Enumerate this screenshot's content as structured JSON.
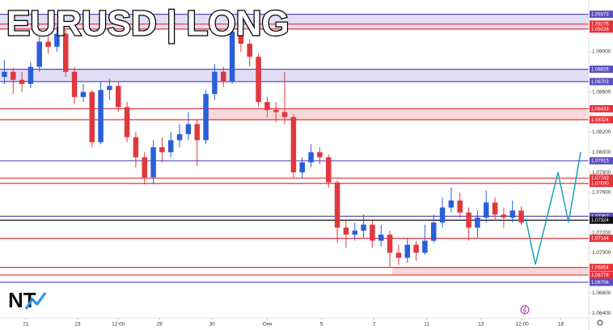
{
  "chart_data": {
    "type": "candlestick",
    "title": "EURUSD | LONG",
    "logo": "NT",
    "xlim": [
      0,
      67.2
    ],
    "ylim": [
      1.06336,
      1.09515
    ],
    "xticks": [
      {
        "value": 2.95,
        "label": "21"
      },
      {
        "value": 8.86,
        "label": "23"
      },
      {
        "value": 13.5,
        "label": "12:00"
      },
      {
        "value": 18.2,
        "label": "28"
      },
      {
        "value": 24.2,
        "label": "30"
      },
      {
        "value": 30.5,
        "label": "Сен"
      },
      {
        "value": 36.7,
        "label": "5"
      },
      {
        "value": 42.7,
        "label": "7"
      },
      {
        "value": 48.7,
        "label": "11"
      },
      {
        "value": 54.9,
        "label": "13"
      },
      {
        "value": 59.6,
        "label": "12:00"
      },
      {
        "value": 64.0,
        "label": "18"
      }
    ],
    "yticks": [
      {
        "value": 1.064,
        "label": "1.06400"
      },
      {
        "value": 1.066,
        "label": "1.06600"
      },
      {
        "value": 1.07,
        "label": "1.07000"
      },
      {
        "value": 1.072,
        "label": "1.07200"
      },
      {
        "value": 1.076,
        "label": "1.07600"
      },
      {
        "value": 1.078,
        "label": "1.07800"
      },
      {
        "value": 1.08,
        "label": "1.08000"
      },
      {
        "value": 1.082,
        "label": "1.08200"
      },
      {
        "value": 1.086,
        "label": "1.08600"
      },
      {
        "value": 1.09,
        "label": "1.09000"
      }
    ],
    "up_color": "#2b5fd9",
    "down_color": "#e0383e",
    "open": [
      1.0875,
      1.088,
      1.0872,
      1.0868,
      1.0885,
      1.091,
      1.0905,
      1.0918,
      1.088,
      1.0855,
      1.086,
      1.081,
      1.0862,
      1.0866,
      1.0845,
      1.0815,
      1.0795,
      1.0775,
      1.0805,
      1.08,
      1.0812,
      1.0818,
      1.0828,
      1.0812,
      1.0858,
      1.088,
      1.087,
      1.092,
      1.0908,
      1.0895,
      1.085,
      1.0842,
      1.084,
      1.0835,
      1.078,
      1.079,
      1.08,
      1.0795,
      1.077,
      1.0725,
      1.0718,
      1.0722,
      1.0728,
      1.0712,
      1.0718,
      1.07,
      1.0695,
      1.0708,
      1.07,
      1.0712,
      1.073,
      1.0745,
      1.0752,
      1.074,
      1.0725,
      1.0735,
      1.075,
      1.0738,
      1.0735,
      1.0742
    ],
    "high": [
      1.0892,
      1.0884,
      1.088,
      1.089,
      1.0915,
      1.092,
      1.0925,
      1.0922,
      1.0885,
      1.0868,
      1.0862,
      1.087,
      1.0873,
      1.087,
      1.085,
      1.082,
      1.08,
      1.0812,
      1.0815,
      1.082,
      1.0828,
      1.084,
      1.0832,
      1.0862,
      1.0888,
      1.0885,
      1.0928,
      1.0925,
      1.0912,
      1.0898,
      1.0855,
      1.085,
      1.088,
      1.0838,
      1.0795,
      1.0808,
      1.0805,
      1.0798,
      1.0772,
      1.0732,
      1.073,
      1.0738,
      1.0732,
      1.0728,
      1.0722,
      1.0708,
      1.0715,
      1.0712,
      1.0728,
      1.0738,
      1.0755,
      1.0765,
      1.076,
      1.0745,
      1.0742,
      1.0762,
      1.0755,
      1.0745,
      1.0752,
      1.0746
    ],
    "low": [
      1.0868,
      1.0858,
      1.086,
      1.0864,
      1.088,
      1.0898,
      1.09,
      1.0875,
      1.0848,
      1.085,
      1.0805,
      1.0808,
      1.0852,
      1.084,
      1.081,
      1.0785,
      1.0768,
      1.0768,
      1.079,
      1.0795,
      1.0805,
      1.0812,
      1.0786,
      1.0808,
      1.0852,
      1.0865,
      1.0868,
      1.09,
      1.0885,
      1.0845,
      1.0835,
      1.083,
      1.0828,
      1.0775,
      1.0774,
      1.0785,
      1.0788,
      1.0765,
      1.071,
      1.0705,
      1.0712,
      1.0715,
      1.0705,
      1.0706,
      1.0686,
      1.0688,
      1.069,
      1.0692,
      1.0698,
      1.071,
      1.0725,
      1.074,
      1.0735,
      1.0712,
      1.0715,
      1.073,
      1.0732,
      1.0725,
      1.073,
      1.0728
    ],
    "close": [
      1.088,
      1.0872,
      1.0868,
      1.0885,
      1.091,
      1.0905,
      1.0918,
      1.088,
      1.0855,
      1.086,
      1.081,
      1.0862,
      1.0866,
      1.0845,
      1.0815,
      1.0795,
      1.0775,
      1.0805,
      1.08,
      1.0812,
      1.0818,
      1.0828,
      1.0812,
      1.0858,
      1.088,
      1.087,
      1.092,
      1.0908,
      1.0895,
      1.085,
      1.0842,
      1.084,
      1.0835,
      1.078,
      1.079,
      1.08,
      1.0795,
      1.077,
      1.0725,
      1.0718,
      1.0722,
      1.0728,
      1.0712,
      1.0718,
      1.07,
      1.0695,
      1.0708,
      1.07,
      1.0712,
      1.073,
      1.0745,
      1.0752,
      1.074,
      1.0725,
      1.0735,
      1.075,
      1.0738,
      1.0735,
      1.0742,
      1.073
    ],
    "levels": {
      "values": [
        1.09373,
        1.09275,
        1.09226,
        1.08826,
        1.08703,
        1.08433,
        1.08324,
        1.07915,
        1.07743,
        1.0769,
        1.07363,
        1.07324,
        1.07144,
        1.06854,
        1.06778,
        1.06706
      ],
      "value_labels": [
        "1.09373",
        "1.09275",
        "1.09226",
        "1.08826",
        "1.08703",
        "1.08433",
        "1.08324",
        "1.07915",
        "1.07743",
        "1.07690",
        "1.07363",
        "1.07324",
        "1.07144",
        "1.06854",
        "1.06778",
        "1.06706"
      ],
      "colors": [
        "#5b4fc2",
        "#e8323a",
        "#e8323a",
        "#5b4fc2",
        "#5b4fc2",
        "#e8323a",
        "#e8323a",
        "#5b4fc2",
        "#e8323a",
        "#e8323a",
        "#5b4fc2",
        "#111111",
        "#e8323a",
        "#e8323a",
        "#e8323a",
        "#5b4fc2"
      ]
    },
    "zones": [
      {
        "range": [
          1.09226,
          1.09373
        ],
        "color": "#d9d5f2"
      },
      {
        "range": [
          1.08703,
          1.08826
        ],
        "color": "#d9d5f2"
      },
      {
        "range": [
          1.08324,
          1.08433
        ],
        "color": "#f6cfd2"
      },
      {
        "range": [
          1.06778,
          1.06854
        ],
        "color": "#f6cfd2"
      }
    ]
  }
}
